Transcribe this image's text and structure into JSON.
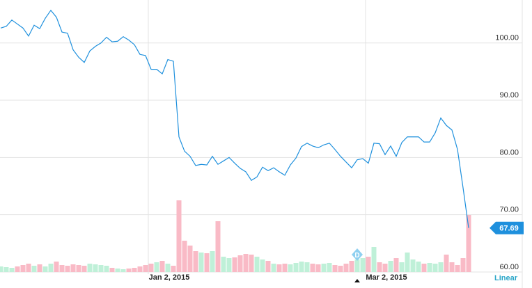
{
  "chart_data": {
    "type": "line",
    "color": "#1e90dd",
    "categories": [
      null,
      null,
      null,
      null,
      null,
      null,
      null,
      null,
      null,
      null,
      null,
      null,
      null,
      null,
      null,
      null,
      null,
      null,
      null,
      null,
      null,
      null,
      null,
      null,
      null,
      null,
      null,
      "Jan 2, 2015",
      null,
      null,
      null,
      null,
      null,
      null,
      null,
      null,
      null,
      null,
      null,
      null,
      null,
      null,
      null,
      null,
      null,
      null,
      null,
      null,
      null,
      null,
      null,
      null,
      null,
      null,
      null,
      null,
      null,
      null,
      null,
      null,
      null,
      null,
      null,
      null,
      null,
      null,
      "Mar 2, 2015",
      null,
      null,
      null,
      null,
      null,
      null,
      null,
      null,
      null,
      null,
      null,
      null,
      null,
      null,
      null,
      null,
      null,
      null
    ],
    "values": [
      102.6,
      102.9,
      104.0,
      103.3,
      102.6,
      101.2,
      103.1,
      102.5,
      104.3,
      105.7,
      104.5,
      101.9,
      101.7,
      98.8,
      97.5,
      96.6,
      98.6,
      99.4,
      100.0,
      101.0,
      100.2,
      100.3,
      101.1,
      100.5,
      99.7,
      98.0,
      97.8,
      95.4,
      95.4,
      94.6,
      97.1,
      96.8,
      83.6,
      81.1,
      80.2,
      78.6,
      78.8,
      78.7,
      80.2,
      78.8,
      79.4,
      80.0,
      79.0,
      78.1,
      77.5,
      76.0,
      76.6,
      78.3,
      77.7,
      78.2,
      77.5,
      76.9,
      78.7,
      79.9,
      81.9,
      82.5,
      82.0,
      81.7,
      82.2,
      82.5,
      81.4,
      80.2,
      79.2,
      78.2,
      79.6,
      79.8,
      79.0,
      82.5,
      82.4,
      80.5,
      82.0,
      80.2,
      82.6,
      83.6,
      83.6,
      83.6,
      82.7,
      82.7,
      84.3,
      86.9,
      85.6,
      84.8,
      81.4,
      74.7,
      67.69
    ],
    "volume": [
      8,
      7,
      6,
      8,
      10,
      12,
      9,
      11,
      8,
      12,
      15,
      10,
      9,
      11,
      10,
      9,
      12,
      11,
      10,
      9,
      6,
      5,
      4,
      5,
      6,
      8,
      10,
      12,
      14,
      16,
      12,
      9,
      103,
      45,
      38,
      30,
      28,
      27,
      30,
      73,
      22,
      20,
      21,
      24,
      26,
      25,
      22,
      18,
      16,
      12,
      11,
      12,
      11,
      13,
      15,
      14,
      12,
      11,
      12,
      13,
      10,
      9,
      12,
      16,
      18,
      20,
      22,
      36,
      14,
      12,
      16,
      20,
      14,
      28,
      18,
      15,
      12,
      13,
      12,
      14,
      25,
      14,
      10,
      20,
      82
    ],
    "volume_colors": {
      "up": "#bff0d8",
      "down": "#f9bac6"
    },
    "ylim": [
      60,
      107.5
    ],
    "yticks": [
      {
        "value": 60,
        "label": "60.00"
      },
      {
        "value": 70,
        "label": "70.00"
      },
      {
        "value": 80,
        "label": "80.00"
      },
      {
        "value": 90,
        "label": "90.00"
      },
      {
        "value": 100,
        "label": "100.00"
      }
    ],
    "grid": true,
    "events": [
      {
        "label": "D",
        "index": 64
      }
    ],
    "scale_label": "Linear"
  }
}
